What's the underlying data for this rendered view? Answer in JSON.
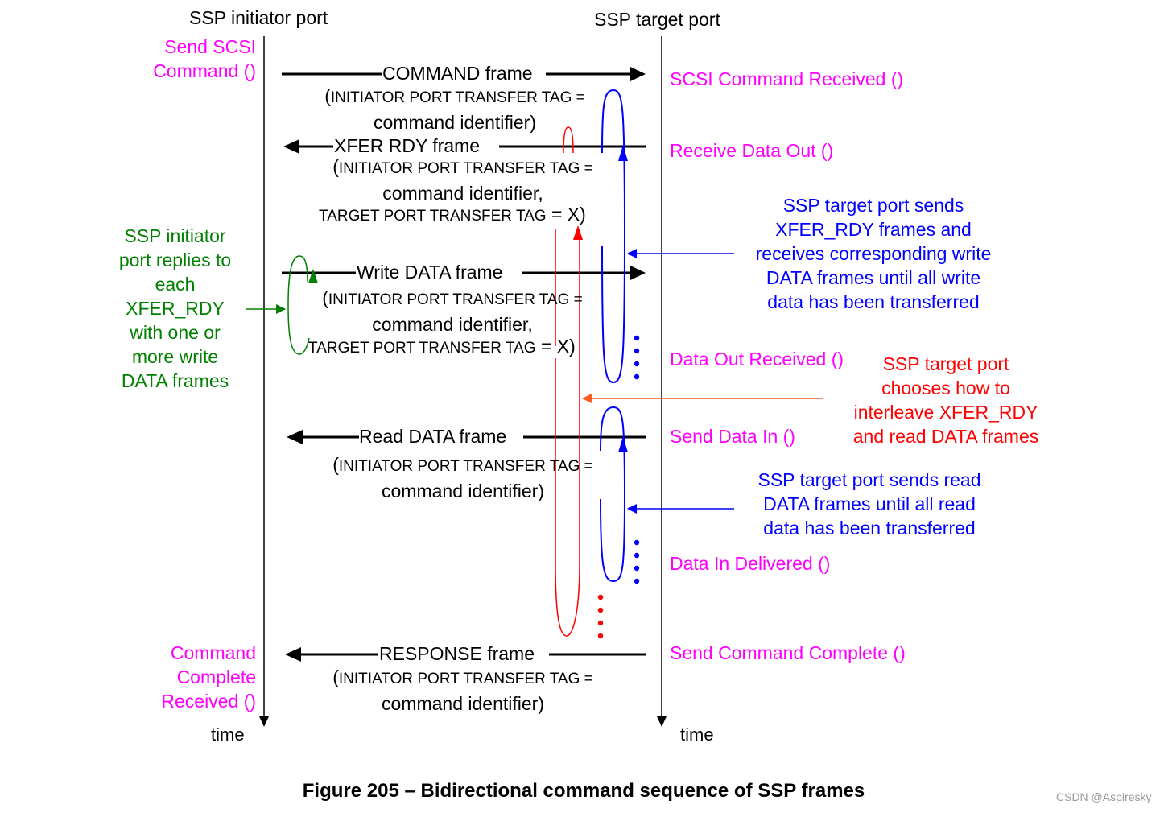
{
  "header": {
    "initiator_port": "SSP initiator port",
    "target_port": "SSP target port"
  },
  "initiator_events": {
    "send_cmd": [
      "Send SCSI",
      "Command ()"
    ],
    "cmd_complete": [
      "Command",
      "Complete",
      "Received ()"
    ]
  },
  "target_events": {
    "cmd_received": "SCSI Command Received ()",
    "receive_data_out": "Receive Data Out ()",
    "data_out_received": "Data Out Received ()",
    "send_data_in": "Send Data In ()",
    "data_in_delivered": "Data In Delivered ()",
    "send_cmd_complete": "Send Command Complete ()"
  },
  "frames": {
    "command": {
      "name": "COMMAND frame",
      "tag_lead": "(",
      "tag": "INITIATOR PORT TRANSFER TAG =",
      "line2": "command identifier)"
    },
    "xfer_rdy": {
      "name": "XFER  RDY frame",
      "tag_lead": "(",
      "tag": "INITIATOR PORT TRANSFER TAG =",
      "line2": "command identifier,",
      "tag2": "TARGET PORT TRANSFER TAG",
      "tag2_val": "= X)"
    },
    "write_data": {
      "name": "Write DATA frame",
      "tag_lead": "(",
      "tag": "INITIATOR PORT TRANSFER TAG =",
      "line2": "command identifier,",
      "tag2": "TARGET PORT TRANSFER TAG",
      "tag2_val": "= X)"
    },
    "read_data": {
      "name": "Read DATA frame",
      "tag_lead": "(",
      "tag": "INITIATOR PORT TRANSFER TAG =",
      "line2": "command identifier)"
    },
    "response": {
      "name": "RESPONSE frame",
      "tag_lead": "(",
      "tag": "INITIATOR PORT TRANSFER TAG =",
      "line2": "command identifier)"
    }
  },
  "notes": {
    "initiator_replies": [
      "SSP initiator",
      "port replies to",
      "each",
      "XFER_RDY",
      "with one or",
      "more write",
      "DATA frames"
    ],
    "target_xfer": [
      "SSP target port sends",
      "XFER_RDY frames and",
      "receives corresponding write",
      "DATA frames until all write",
      "data has been transferred"
    ],
    "target_interleave": [
      "SSP target port",
      "chooses how to",
      "interleave XFER_RDY",
      "and read DATA frames"
    ],
    "target_read": [
      "SSP target port sends read",
      "DATA frames until all read",
      "data has been transferred"
    ]
  },
  "time_label": "time",
  "caption": "Figure 205 – Bidirectional command sequence of SSP frames",
  "watermark": "CSDN @Aspiresky",
  "colors": {
    "event": "#ff00ff",
    "green": "#008000",
    "blue": "#0000ff",
    "red": "#ff0000",
    "orange": "#ff5a1f"
  }
}
